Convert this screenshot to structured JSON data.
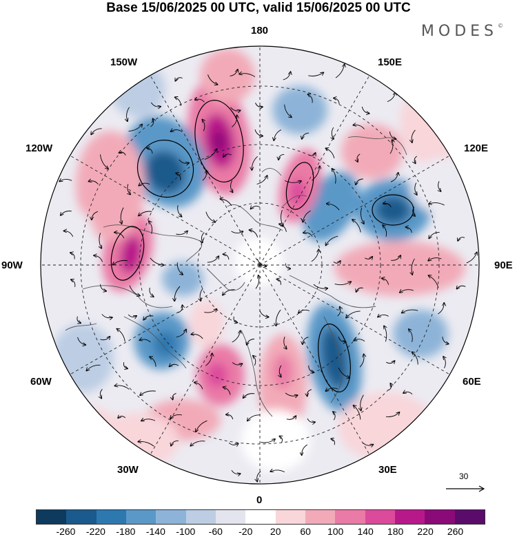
{
  "title": "Base 15/06/2025 00 UTC, valid 15/06/2025 00 UTC",
  "brand": "MODES",
  "brand_mark": "©",
  "longitude_labels": {
    "top": "180",
    "bottom": "0",
    "left": "90W",
    "right": "90E",
    "w150": "150W",
    "e150": "150E",
    "w120": "120W",
    "e120": "120E",
    "w60": "60W",
    "e60": "60E",
    "w30": "30W",
    "e30": "30E"
  },
  "reference_vector": {
    "label": "30"
  },
  "colorbar": {
    "colors": [
      "#0e3a5e",
      "#1a5a8c",
      "#2e78b0",
      "#5a98c8",
      "#8db4d8",
      "#bccde4",
      "#e4e4ef",
      "#ffffff",
      "#f8d6da",
      "#f2aab8",
      "#ea7aa6",
      "#dc4a9c",
      "#b8198a",
      "#8a0a78",
      "#5a0c6a"
    ],
    "tick_labels": [
      "-260",
      "-220",
      "-180",
      "-140",
      "-100",
      "-60",
      "-20",
      "20",
      "60",
      "100",
      "140",
      "180",
      "220",
      "260"
    ]
  },
  "colors": {
    "negative": "#2e78b0",
    "positive": "#dc4a9c",
    "land_outline": "#555555"
  }
}
